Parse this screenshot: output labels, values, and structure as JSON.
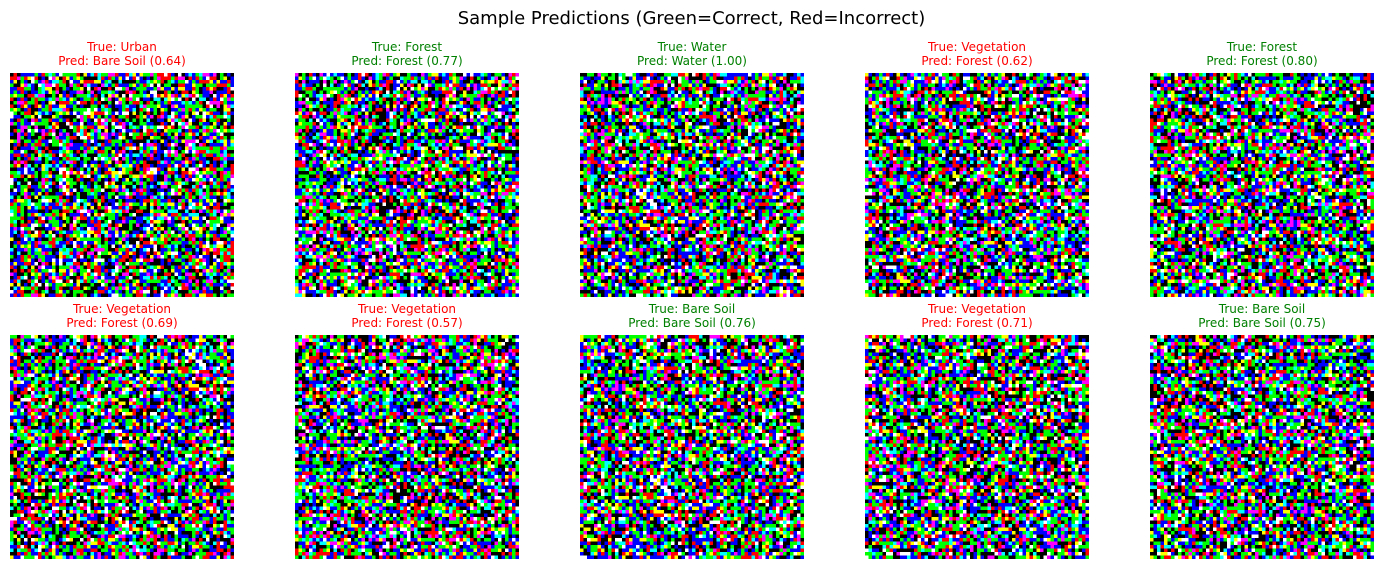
{
  "title": "Sample Predictions (Green=Correct, Red=Incorrect)",
  "colors": {
    "correct": "#008000",
    "incorrect": "#ff0000"
  },
  "chart_data": {
    "type": "image-grid",
    "title": "Sample Predictions (Green=Correct, Red=Incorrect)",
    "rows": 2,
    "cols": 5,
    "samples": [
      {
        "true_label": "True: Urban",
        "pred_label": "Pred: Bare Soil (0.64)",
        "correct": false,
        "confidence": 0.64
      },
      {
        "true_label": "True: Forest",
        "pred_label": "Pred: Forest (0.77)",
        "correct": true,
        "confidence": 0.77
      },
      {
        "true_label": "True: Water",
        "pred_label": "Pred: Water (1.00)",
        "correct": true,
        "confidence": 1.0
      },
      {
        "true_label": "True: Vegetation",
        "pred_label": "Pred: Forest (0.62)",
        "correct": false,
        "confidence": 0.62
      },
      {
        "true_label": "True: Forest",
        "pred_label": "Pred: Forest (0.80)",
        "correct": true,
        "confidence": 0.8
      },
      {
        "true_label": "True: Vegetation",
        "pred_label": "Pred: Forest (0.69)",
        "correct": false,
        "confidence": 0.69
      },
      {
        "true_label": "True: Vegetation",
        "pred_label": "Pred: Forest (0.57)",
        "correct": false,
        "confidence": 0.57
      },
      {
        "true_label": "True: Bare Soil",
        "pred_label": "Pred: Bare Soil (0.76)",
        "correct": true,
        "confidence": 0.76
      },
      {
        "true_label": "True: Vegetation",
        "pred_label": "Pred: Forest (0.71)",
        "correct": false,
        "confidence": 0.71
      },
      {
        "true_label": "True: Bare Soil",
        "pred_label": "Pred: Bare Soil (0.75)",
        "correct": true,
        "confidence": 0.75
      }
    ]
  }
}
